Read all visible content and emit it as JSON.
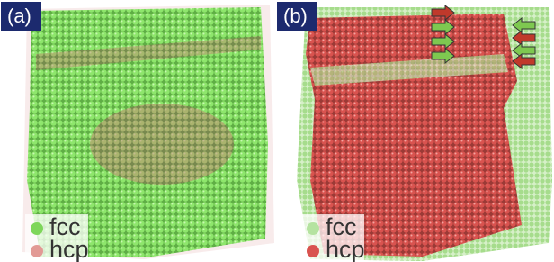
{
  "panels": [
    {
      "label": "(a)",
      "legend": [
        {
          "text": "fcc"
        },
        {
          "text": "hcp"
        }
      ]
    },
    {
      "label": "(b)",
      "legend": [
        {
          "text": "fcc"
        },
        {
          "text": "hcp"
        }
      ]
    }
  ]
}
